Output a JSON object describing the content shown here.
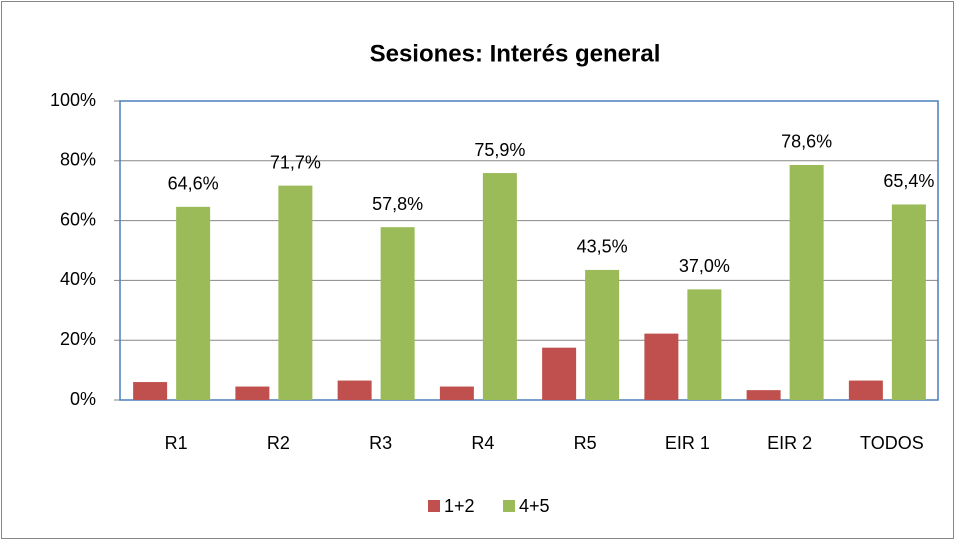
{
  "chart_data": {
    "type": "bar",
    "title": "Sesiones: Interés general",
    "categories": [
      "R1",
      "R2",
      "R3",
      "R4",
      "R5",
      "EIR 1",
      "EIR 2",
      "TODOS"
    ],
    "series": [
      {
        "name": "1+2",
        "color": "#c0504d",
        "values": [
          6.0,
          4.5,
          6.5,
          4.5,
          17.5,
          22.2,
          3.3,
          6.5
        ]
      },
      {
        "name": "4+5",
        "color": "#9bbb59",
        "values": [
          64.6,
          71.7,
          57.8,
          75.9,
          43.5,
          37.0,
          78.6,
          65.4
        ],
        "value_labels": [
          "64,6%",
          "71,7%",
          "57,8%",
          "75,9%",
          "43,5%",
          "37,0%",
          "78,6%",
          "65,4%"
        ]
      }
    ],
    "ylim": [
      0,
      100
    ],
    "yticks": [
      {
        "value": 0,
        "label": "0%"
      },
      {
        "value": 20,
        "label": "20%"
      },
      {
        "value": 40,
        "label": "40%"
      },
      {
        "value": 60,
        "label": "60%"
      },
      {
        "value": 80,
        "label": "80%"
      },
      {
        "value": 100,
        "label": "100%"
      }
    ],
    "grid": true,
    "legend": "bottom"
  }
}
